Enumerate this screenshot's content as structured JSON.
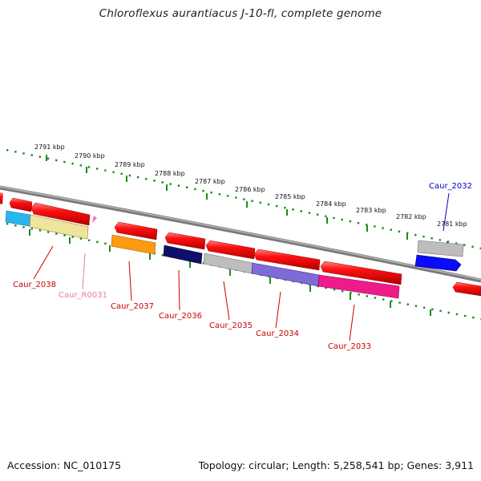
{
  "title": "Chloroflexus aurantiacus J-10-fl, complete genome",
  "footer": {
    "accession": "Accession: NC_010175",
    "summary": "Topology: circular; Length: 5,258,541 bp; Genes: 3,911"
  },
  "colors": {
    "backbone": "#7a7a7a",
    "tick": "#1a8a1a",
    "label_red": "#cc0000",
    "label_pink": "#e87aa8",
    "label_blue": "#0000cc"
  },
  "ticks": [
    {
      "label": "2791 kbp"
    },
    {
      "label": "2790 kbp"
    },
    {
      "label": "2789 kbp"
    },
    {
      "label": "2788 kbp"
    },
    {
      "label": "2787 kbp"
    },
    {
      "label": "2786 kbp"
    },
    {
      "label": "2785 kbp"
    },
    {
      "label": "2784 kbp"
    },
    {
      "label": "2783 kbp"
    },
    {
      "label": "2782 kbp"
    },
    {
      "label": "2781 kbp"
    }
  ],
  "labels": [
    {
      "text": "Caur_2038",
      "color": "#cc0000"
    },
    {
      "text": "Caur_R0031",
      "color": "#e87aa8"
    },
    {
      "text": "Caur_2037",
      "color": "#cc0000"
    },
    {
      "text": "Caur_2036",
      "color": "#cc0000"
    },
    {
      "text": "Caur_2035",
      "color": "#cc0000"
    },
    {
      "text": "Caur_2034",
      "color": "#cc0000"
    },
    {
      "text": "Caur_2033",
      "color": "#cc0000"
    },
    {
      "text": "Caur_2032",
      "color": "#0000cc"
    }
  ]
}
